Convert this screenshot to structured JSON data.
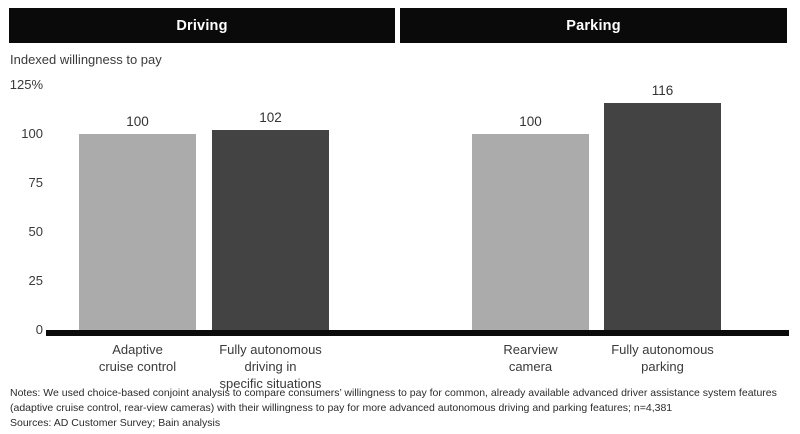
{
  "chart_data": {
    "type": "bar",
    "axis_label": "Indexed willingness to pay",
    "ylim": [
      0,
      125
    ],
    "grid": false,
    "legend": "none",
    "yticks": [
      {
        "label": "125%",
        "value": 125
      },
      {
        "label": "100",
        "value": 100
      },
      {
        "label": "75",
        "value": 75
      },
      {
        "label": "50",
        "value": 50
      },
      {
        "label": "25",
        "value": 25
      },
      {
        "label": "0",
        "value": 0
      }
    ],
    "panels": [
      {
        "title": "Driving",
        "bars": [
          {
            "category": "Adaptive\ncruise control",
            "value": 100,
            "value_label": "100",
            "shade": "light"
          },
          {
            "category": "Fully autonomous\ndriving in\nspecific situations",
            "value": 102,
            "value_label": "102",
            "shade": "dark"
          }
        ]
      },
      {
        "title": "Parking",
        "bars": [
          {
            "category": "Rearview\ncamera",
            "value": 100,
            "value_label": "100",
            "shade": "light"
          },
          {
            "category": "Fully autonomous\nparking",
            "value": 116,
            "value_label": "116",
            "shade": "dark"
          }
        ]
      }
    ],
    "colors": {
      "light_bar": "#ababab",
      "dark_bar": "#434343",
      "header_bg": "#0a0a0a",
      "header_text": "#ffffff",
      "axis_line": "#0b0b0b",
      "text": "#3a3a3a"
    }
  },
  "footer": {
    "notes": "Notes: We used choice-based conjoint analysis to compare consumers’ willingness to pay for common, already available advanced driver assistance system features (adaptive cruise control, rear-view cameras) with their willingness to pay for more advanced autonomous driving and parking features; n=4,381",
    "sources": "Sources: AD Customer Survey; Bain analysis"
  }
}
